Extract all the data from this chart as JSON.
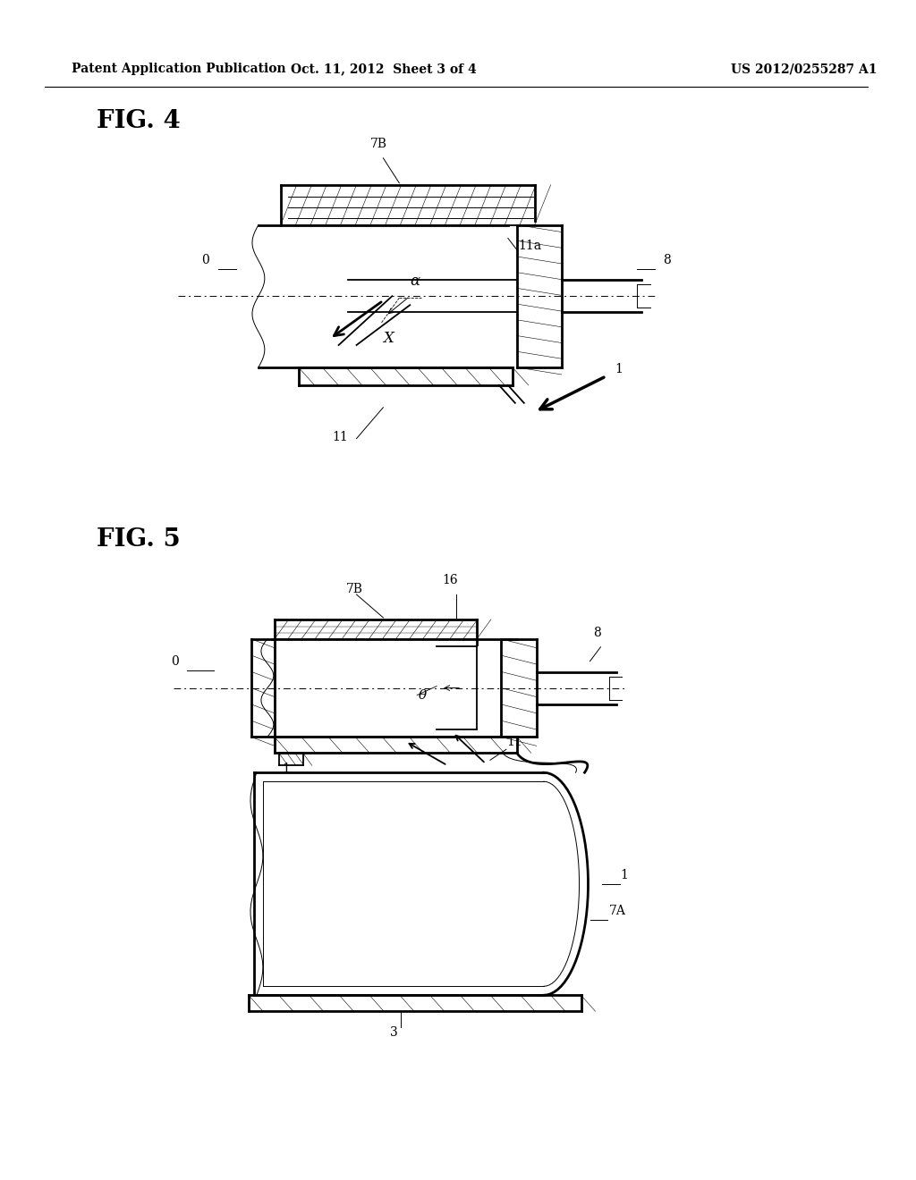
{
  "bg_color": "#ffffff",
  "line_color": "#000000",
  "header_text": "Patent Application Publication",
  "header_date": "Oct. 11, 2012  Sheet 3 of 4",
  "header_patent": "US 2012/0255287 A1",
  "fig4_label": "FIG. 4",
  "fig5_label": "FIG. 5"
}
